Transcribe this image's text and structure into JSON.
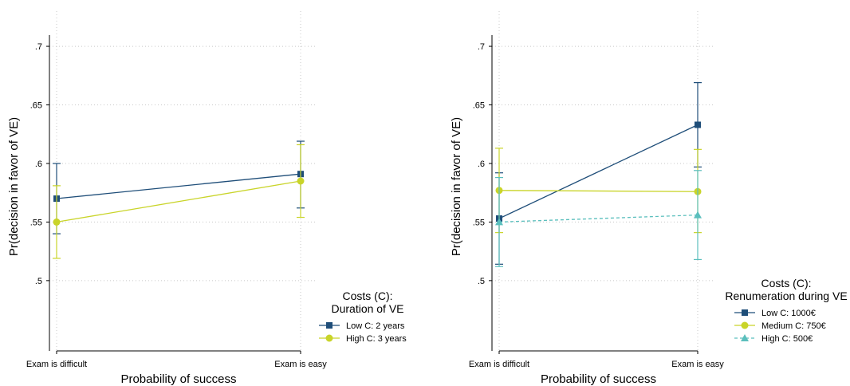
{
  "chart_data": [
    {
      "type": "line",
      "xlabel": "Probability of success",
      "ylabel": "Pr(decision in favor of VE)",
      "categories": [
        "Exam is difficult",
        "Exam is easy"
      ],
      "yticks": [
        ".5",
        ".55",
        ".6",
        ".65",
        ".7"
      ],
      "ylim": [
        0.44,
        0.73
      ],
      "grid": true,
      "legend": {
        "title_line1": "Costs (C):",
        "title_line2": "Duration of VE",
        "placement": "right"
      },
      "series": [
        {
          "name": "Low C: 2 years",
          "color": "#1f4e79",
          "marker": "square",
          "dashed": false,
          "values": [
            0.57,
            0.591
          ],
          "ci_low": [
            0.54,
            0.562
          ],
          "ci_high": [
            0.6,
            0.619
          ]
        },
        {
          "name": "High C: 3 years",
          "color": "#c9d429",
          "marker": "circle",
          "dashed": false,
          "values": [
            0.55,
            0.585
          ],
          "ci_low": [
            0.519,
            0.554
          ],
          "ci_high": [
            0.581,
            0.616
          ]
        }
      ]
    },
    {
      "type": "line",
      "xlabel": "Probability of success",
      "ylabel": "Pr(decision in favor of VE)",
      "categories": [
        "Exam is difficult",
        "Exam is easy"
      ],
      "yticks": [
        ".5",
        ".55",
        ".6",
        ".65",
        ".7"
      ],
      "ylim": [
        0.44,
        0.73
      ],
      "grid": true,
      "legend": {
        "title_line1": "Costs (C):",
        "title_line2": "Renumeration during VE",
        "placement": "right"
      },
      "series": [
        {
          "name": "Low C: 1000€",
          "color": "#1f4e79",
          "marker": "square",
          "dashed": false,
          "values": [
            0.553,
            0.633
          ],
          "ci_low": [
            0.514,
            0.597
          ],
          "ci_high": [
            0.592,
            0.669
          ]
        },
        {
          "name": "Medium C: 750€",
          "color": "#c9d429",
          "marker": "circle",
          "dashed": false,
          "values": [
            0.577,
            0.576
          ],
          "ci_low": [
            0.541,
            0.541
          ],
          "ci_high": [
            0.613,
            0.612
          ]
        },
        {
          "name": "High C: 500€",
          "color": "#5bbfbd",
          "marker": "triangle",
          "dashed": true,
          "values": [
            0.55,
            0.556
          ],
          "ci_low": [
            0.512,
            0.518
          ],
          "ci_high": [
            0.588,
            0.594
          ]
        }
      ]
    }
  ]
}
